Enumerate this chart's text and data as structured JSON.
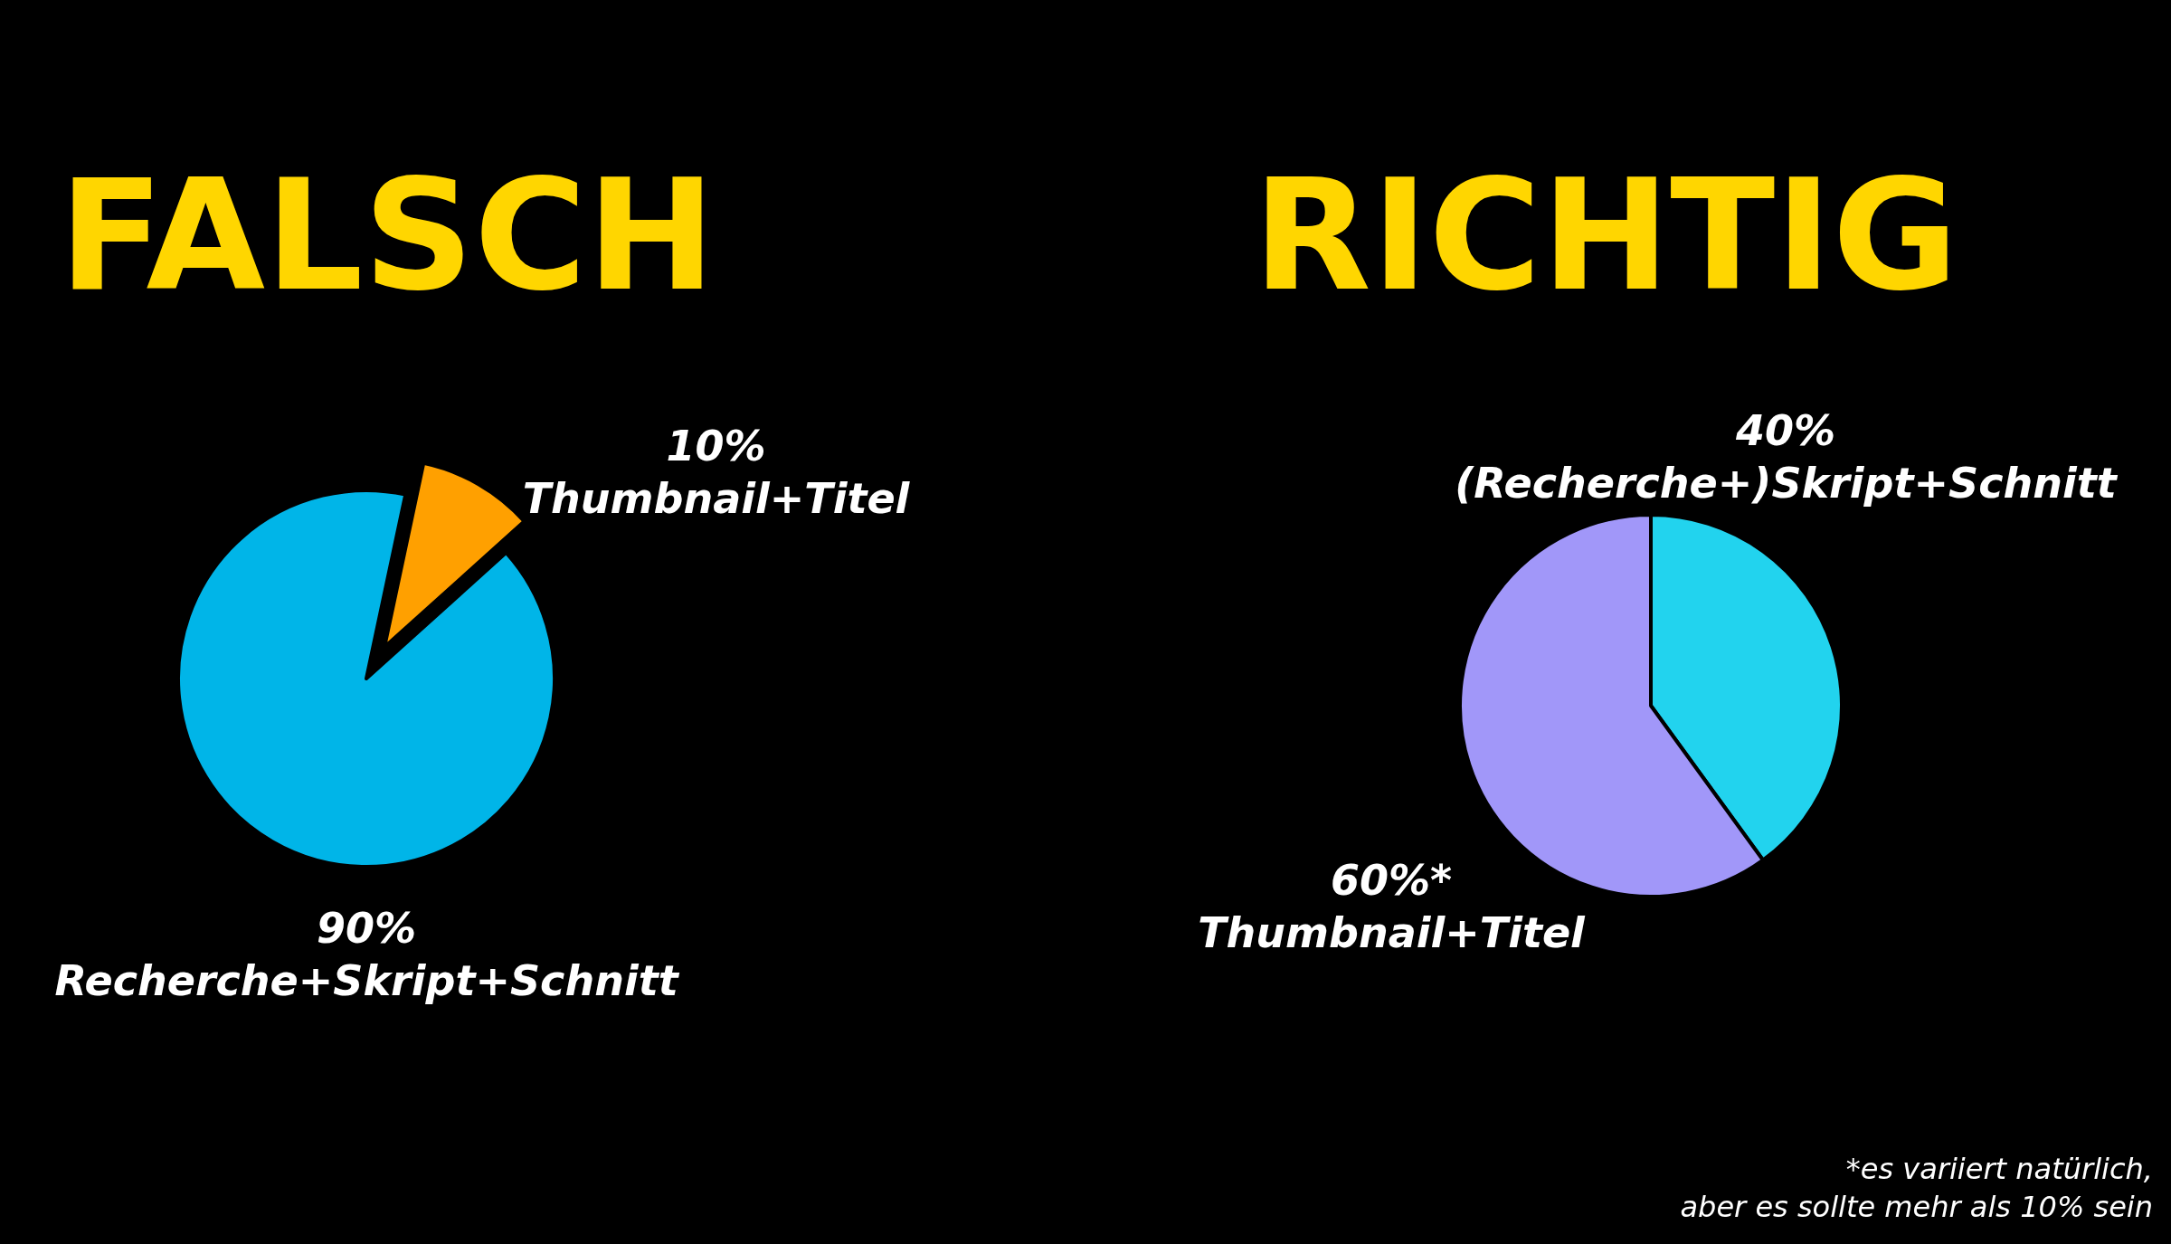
{
  "chart_data": [
    {
      "type": "pie",
      "title": "FALSCH",
      "categories": [
        "Thumbnail+Titel",
        "Recherche+Skript+Schnitt"
      ],
      "values": [
        10,
        90
      ],
      "colors": [
        "#ffa000",
        "#00b5e8"
      ],
      "value_labels": [
        "10%",
        "90%"
      ]
    },
    {
      "type": "pie",
      "title": "RICHTIG",
      "categories": [
        "(Recherche+)Skript+Schnitt",
        "Thumbnail+Titel"
      ],
      "values": [
        40,
        60
      ],
      "colors": [
        "#22d3ee",
        "#a197f9"
      ],
      "value_labels": [
        "40%",
        "60%*"
      ],
      "annotations": [
        "*es variiert natürlich,\naber es sollte mehr als 10% sein"
      ]
    }
  ]
}
